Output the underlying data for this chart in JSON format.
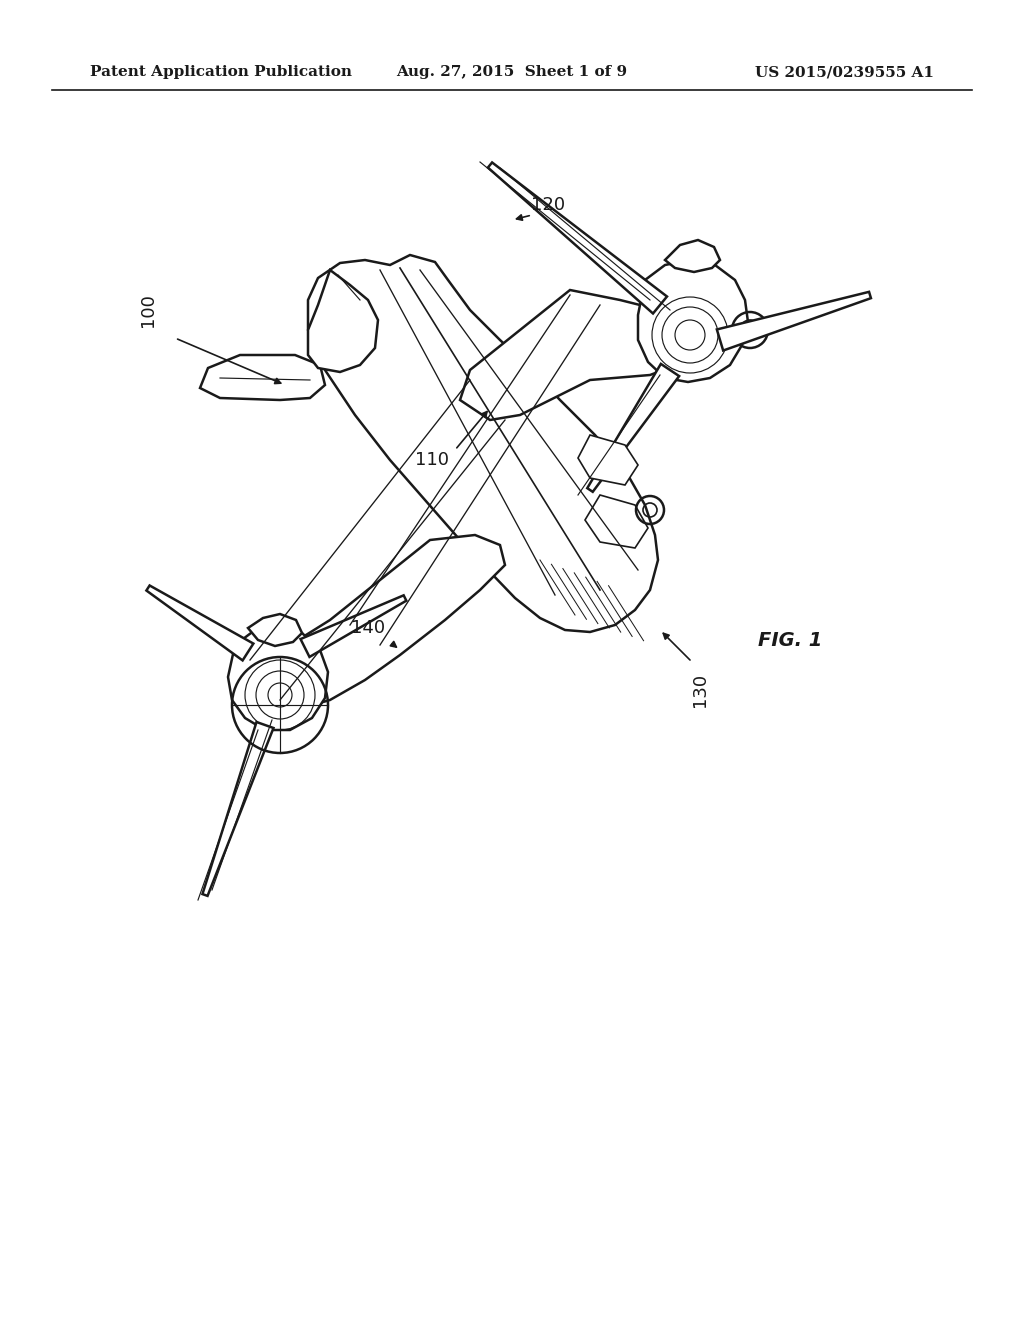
{
  "background_color": "#ffffff",
  "header_left": "Patent Application Publication",
  "header_center": "Aug. 27, 2015  Sheet 1 of 9",
  "header_right": "US 2015/0239555 A1",
  "fig_label": "FIG. 1",
  "line_color": "#1a1a1a",
  "label_color": "#1a1a1a",
  "header_fontsize": 11,
  "label_fontsize": 13,
  "fig_label_fontsize": 14
}
